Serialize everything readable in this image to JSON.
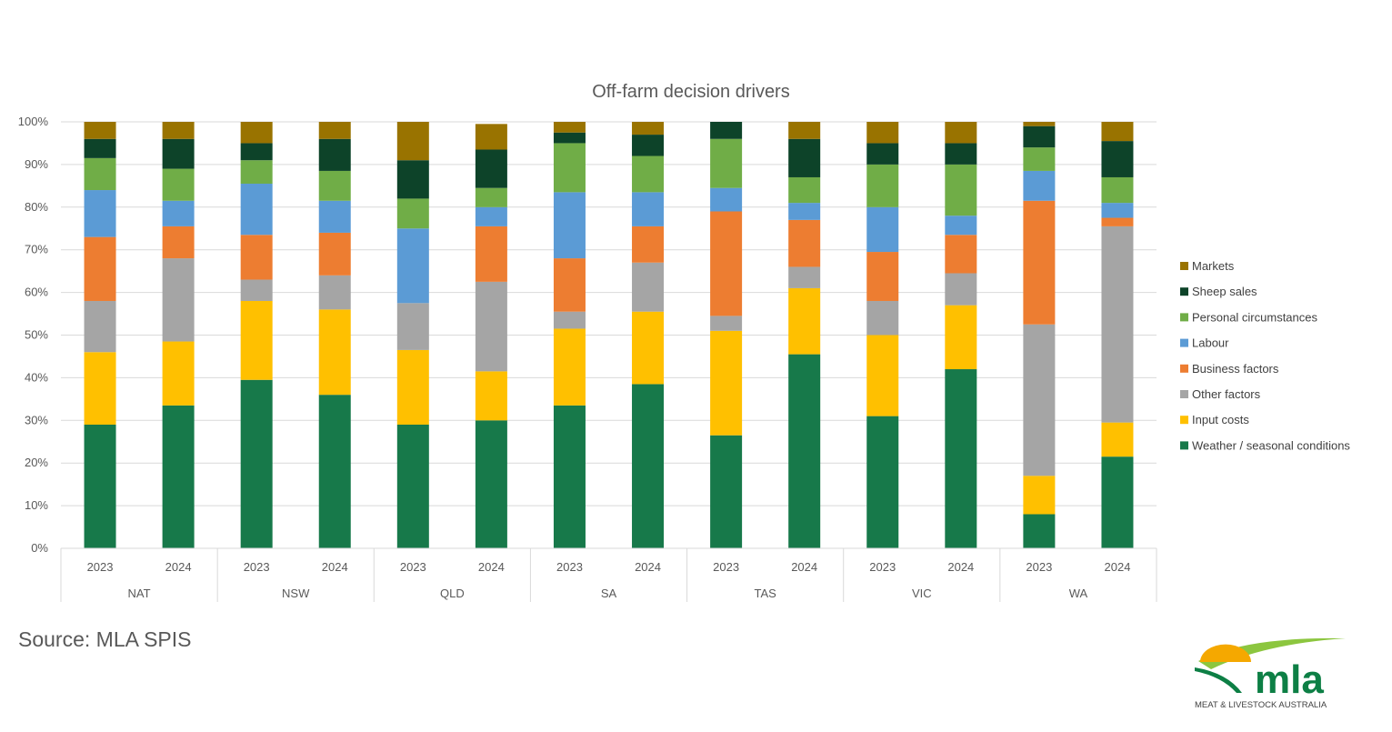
{
  "chart_data": {
    "type": "bar",
    "stacked": true,
    "title": "Off-farm decision drivers",
    "yticks": [
      "0%",
      "10%",
      "20%",
      "30%",
      "40%",
      "50%",
      "60%",
      "70%",
      "80%",
      "90%",
      "100%"
    ],
    "ylim": [
      0,
      100
    ],
    "grid": true,
    "legend_position": "right",
    "groups": [
      "NAT",
      "NSW",
      "QLD",
      "SA",
      "TAS",
      "VIC",
      "WA"
    ],
    "years": [
      "2023",
      "2024"
    ],
    "categories": [
      "NAT 2023",
      "NAT 2024",
      "NSW 2023",
      "NSW 2024",
      "QLD 2023",
      "QLD 2024",
      "SA 2023",
      "SA 2024",
      "TAS 2023",
      "TAS 2024",
      "VIC 2023",
      "VIC 2024",
      "WA 2023",
      "WA 2024"
    ],
    "series": [
      {
        "name": "Weather / seasonal conditions",
        "color": "#17794a",
        "values": [
          29,
          33.5,
          39.5,
          36,
          29,
          30,
          33.5,
          38.5,
          26.5,
          45.5,
          31,
          42,
          8,
          21.5
        ]
      },
      {
        "name": "Input costs",
        "color": "#ffc000",
        "values": [
          17,
          15,
          18.5,
          20,
          17.5,
          11.5,
          18,
          17,
          24.5,
          15.5,
          19,
          15,
          9,
          8
        ]
      },
      {
        "name": "Other factors",
        "color": "#a5a5a5",
        "values": [
          12,
          19.5,
          5,
          8,
          11,
          21,
          4,
          11.5,
          3.5,
          5,
          8,
          7.5,
          35.5,
          46
        ]
      },
      {
        "name": "Business factors",
        "color": "#ed7d31",
        "values": [
          15,
          7.5,
          10.5,
          10,
          0,
          13,
          12.5,
          8.5,
          24.5,
          11,
          11.5,
          9,
          29,
          2
        ]
      },
      {
        "name": "Labour",
        "color": "#5b9bd5",
        "values": [
          11,
          6,
          12,
          7.5,
          17.5,
          4.5,
          15.5,
          8,
          5.5,
          4,
          10.5,
          4.5,
          7,
          3.5
        ]
      },
      {
        "name": "Personal circumstances",
        "color": "#70ad47",
        "values": [
          7.5,
          7.5,
          5.5,
          7,
          7,
          4.5,
          11.5,
          8.5,
          11.5,
          6,
          10,
          12,
          5.5,
          6
        ]
      },
      {
        "name": "Sheep sales",
        "color": "#0d4329",
        "values": [
          4.5,
          7,
          4,
          7.5,
          9,
          9,
          2.5,
          5,
          4,
          9,
          5,
          5,
          5,
          8.5
        ]
      },
      {
        "name": "Markets",
        "color": "#997300",
        "values": [
          4,
          4,
          5,
          4,
          9,
          6,
          2.5,
          3,
          0,
          4,
          5,
          5,
          1,
          4.5
        ]
      }
    ]
  },
  "source": "Source: MLA SPIS",
  "logo": {
    "wordmark": "mla",
    "tagline": "MEAT & LIVESTOCK AUSTRALIA",
    "colors": {
      "sun": "#f5a800",
      "text": "#0d7f45",
      "swoosh": "#8cc63f"
    }
  }
}
